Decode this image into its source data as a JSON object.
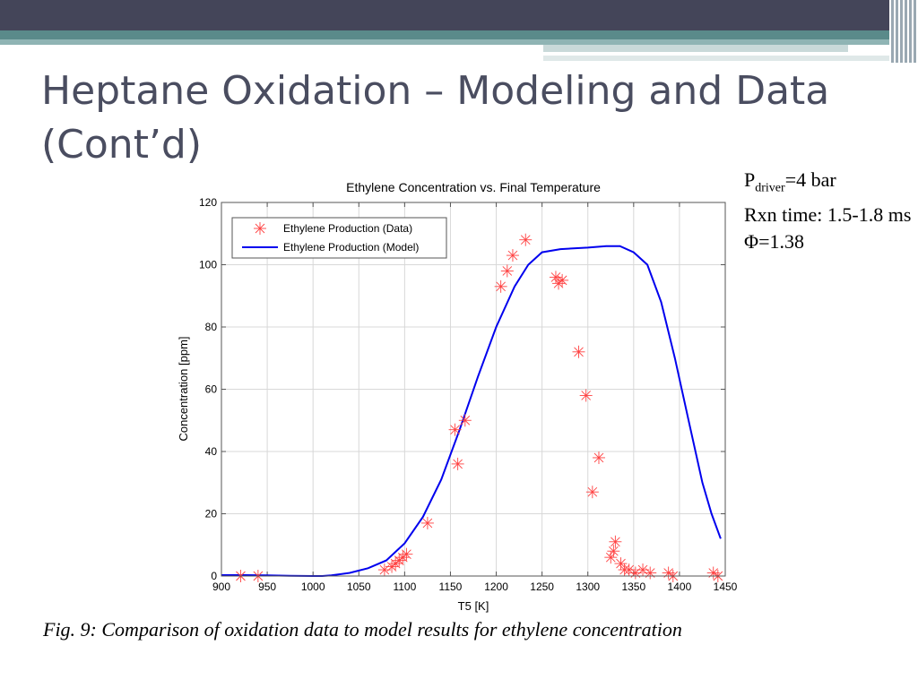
{
  "slide": {
    "title": "Heptane Oxidation – Modeling and Data (Cont’d)",
    "params": {
      "p_label": "P",
      "p_sub": "driver",
      "p_value": "=4 bar",
      "rxn_time": "Rxn time: 1.5-1.8 ms",
      "phi": "Φ=1.38"
    },
    "caption": "Fig. 9: Comparison of oxidation data to model results for ethylene concentration"
  },
  "colors": {
    "header_dark": "#444559",
    "header_teal": "#5a8a8a",
    "title_text": "#4a4d60",
    "model_line": "#0000ee",
    "data_marker": "#ff4040"
  },
  "chart_data": {
    "type": "scatter",
    "title": "Ethylene Concentration vs. Final Temperature",
    "xlabel": "T5 [K]",
    "ylabel": "Concentration [ppm]",
    "xlim": [
      900,
      1450
    ],
    "ylim": [
      0,
      120
    ],
    "xticks": [
      900,
      950,
      1000,
      1050,
      1100,
      1150,
      1200,
      1250,
      1300,
      1350,
      1400,
      1450
    ],
    "yticks": [
      0,
      20,
      40,
      60,
      80,
      100,
      120
    ],
    "grid": true,
    "legend_position": "top-left",
    "series": [
      {
        "name": "Ethylene Production (Data)",
        "style": "markers",
        "points": [
          [
            921,
            0
          ],
          [
            940,
            0
          ],
          [
            1078,
            2
          ],
          [
            1086,
            3
          ],
          [
            1090,
            4
          ],
          [
            1094,
            5
          ],
          [
            1098,
            6
          ],
          [
            1102,
            7
          ],
          [
            1125,
            17
          ],
          [
            1155,
            47
          ],
          [
            1158,
            36
          ],
          [
            1166,
            50
          ],
          [
            1205,
            93
          ],
          [
            1212,
            98
          ],
          [
            1218,
            103
          ],
          [
            1232,
            108
          ],
          [
            1265,
            96
          ],
          [
            1268,
            94
          ],
          [
            1272,
            95
          ],
          [
            1290,
            72
          ],
          [
            1298,
            58
          ],
          [
            1305,
            27
          ],
          [
            1312,
            38
          ],
          [
            1325,
            6
          ],
          [
            1328,
            8
          ],
          [
            1330,
            11
          ],
          [
            1336,
            4
          ],
          [
            1340,
            2
          ],
          [
            1345,
            2
          ],
          [
            1352,
            1
          ],
          [
            1360,
            2
          ],
          [
            1368,
            1
          ],
          [
            1388,
            1
          ],
          [
            1393,
            0
          ],
          [
            1437,
            1
          ],
          [
            1442,
            0
          ]
        ]
      },
      {
        "name": "Ethylene Production (Model)",
        "style": "line",
        "points": [
          [
            900,
            0.3
          ],
          [
            925,
            0.3
          ],
          [
            950,
            0.2
          ],
          [
            975,
            0.1
          ],
          [
            1000,
            0
          ],
          [
            1010,
            0
          ],
          [
            1020,
            0.2
          ],
          [
            1040,
            1
          ],
          [
            1060,
            2.5
          ],
          [
            1080,
            5
          ],
          [
            1100,
            10.5
          ],
          [
            1120,
            19
          ],
          [
            1140,
            31
          ],
          [
            1160,
            47
          ],
          [
            1180,
            64
          ],
          [
            1200,
            80
          ],
          [
            1220,
            93
          ],
          [
            1235,
            100
          ],
          [
            1250,
            104
          ],
          [
            1270,
            105
          ],
          [
            1300,
            105.5
          ],
          [
            1320,
            106
          ],
          [
            1335,
            106
          ],
          [
            1350,
            104
          ],
          [
            1365,
            100
          ],
          [
            1380,
            88
          ],
          [
            1395,
            70
          ],
          [
            1410,
            50
          ],
          [
            1425,
            30
          ],
          [
            1435,
            20
          ],
          [
            1445,
            12
          ]
        ]
      }
    ]
  }
}
